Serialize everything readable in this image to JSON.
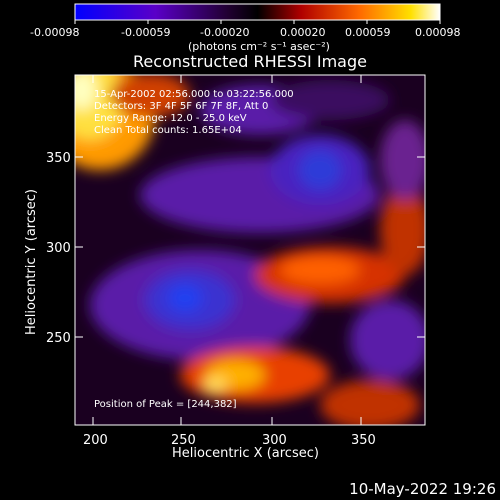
{
  "colorbar": {
    "tick_labels": [
      "-0.00098",
      "-0.00059",
      "-0.00020",
      "0.00020",
      "0.00059",
      "0.00098"
    ],
    "units_label": "(photons cm⁻² s⁻¹ asec⁻²)",
    "colors": [
      "#0000ff",
      "#4b00a8",
      "#2a0040",
      "#000000",
      "#c00000",
      "#ff6000",
      "#ffd000",
      "#ffffff"
    ]
  },
  "title": "Reconstructed RHESSI Image",
  "annotations": {
    "time_range": "15-Apr-2002 02:56.000 to 03:22:56.000",
    "detectors": "Detectors: 3F 4F 5F 6F 7F 8F, Att 0",
    "energy_range": "Energy Range: 12.0 - 25.0 keV",
    "clean_counts": "Clean     Total counts: 1.65E+04",
    "peak_position": "Position of Peak = [244,382]"
  },
  "x_axis": {
    "label": "Heliocentric X (arcsec)",
    "ticks": [
      "200",
      "250",
      "300",
      "350"
    ]
  },
  "y_axis": {
    "label": "Heliocentric Y (arcsec)",
    "ticks": [
      "250",
      "300",
      "350"
    ]
  },
  "footer": {
    "timestamp": "10-May-2022 19:26"
  }
}
